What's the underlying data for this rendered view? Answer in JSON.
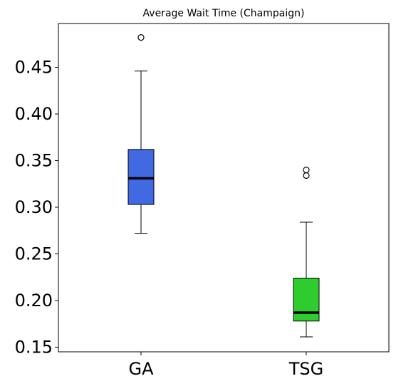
{
  "chart_data": {
    "type": "box",
    "title": "Average Wait Time (Champaign)",
    "xlabel": "",
    "ylabel": "",
    "ylim": [
      0.145,
      0.497
    ],
    "yticks": [
      0.15,
      0.2,
      0.25,
      0.3,
      0.35,
      0.4,
      0.45
    ],
    "ytick_labels": [
      "0.15",
      "0.20",
      "0.25",
      "0.30",
      "0.35",
      "0.40",
      "0.45"
    ],
    "categories": [
      "GA",
      "TSG"
    ],
    "grid": false,
    "legend": "none",
    "series": [
      {
        "category": "GA",
        "color": "#4169E1",
        "whisker_low": 0.272,
        "q1": 0.303,
        "median": 0.331,
        "q3": 0.362,
        "whisker_high": 0.446,
        "outliers": [
          0.482
        ]
      },
      {
        "category": "TSG",
        "color": "#2ECC2E",
        "whisker_low": 0.161,
        "q1": 0.178,
        "median": 0.187,
        "q3": 0.224,
        "whisker_high": 0.284,
        "outliers": [
          0.334,
          0.34
        ]
      }
    ]
  }
}
